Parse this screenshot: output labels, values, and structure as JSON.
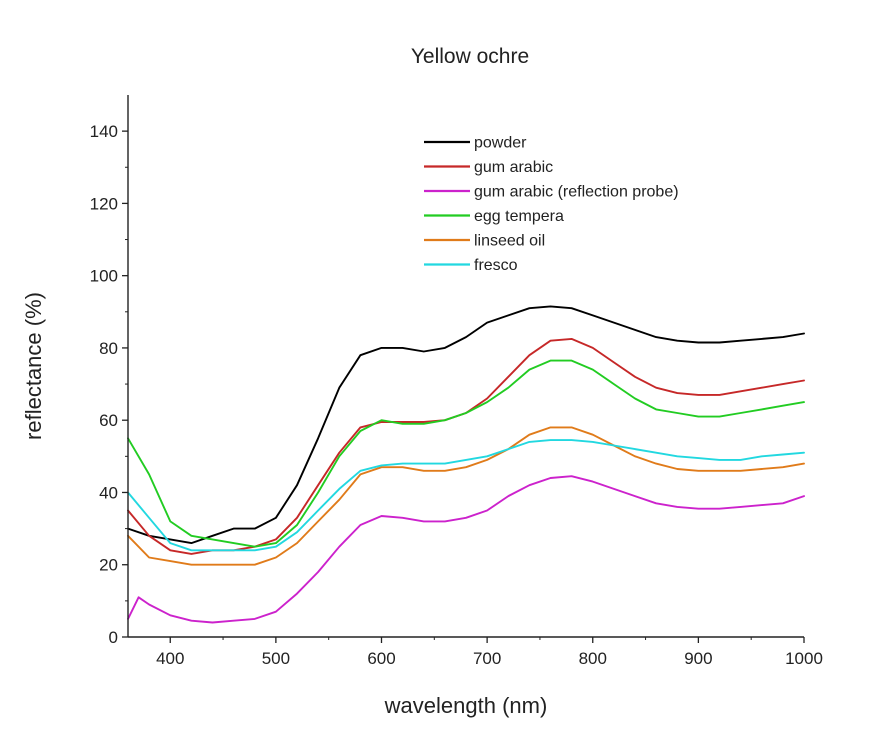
{
  "chart_data": {
    "type": "line",
    "title": "Yellow ochre",
    "xlabel": "wavelength (nm)",
    "ylabel": "reflectance (%)",
    "xlim": [
      360,
      1000
    ],
    "ylim": [
      0,
      150
    ],
    "xticks": [
      400,
      500,
      600,
      700,
      800,
      900,
      1000
    ],
    "yticks": [
      0,
      20,
      40,
      60,
      80,
      100,
      120,
      140
    ],
    "grid": false,
    "legend_position": "top-center",
    "series": [
      {
        "name": "powder",
        "color": "#000000",
        "x": [
          360,
          380,
          400,
          420,
          440,
          460,
          480,
          500,
          520,
          540,
          560,
          580,
          600,
          620,
          640,
          660,
          680,
          700,
          720,
          740,
          760,
          780,
          800,
          820,
          840,
          860,
          880,
          900,
          920,
          940,
          960,
          980,
          1000
        ],
        "y": [
          30,
          28,
          27,
          26,
          28,
          30,
          30,
          33,
          42,
          55,
          69,
          78,
          80,
          80,
          79,
          80,
          83,
          87,
          89,
          91,
          91.5,
          91,
          89,
          87,
          85,
          83,
          82,
          81.5,
          81.5,
          82,
          82.5,
          83,
          84
        ]
      },
      {
        "name": "gum arabic",
        "color": "#c62828",
        "x": [
          360,
          380,
          400,
          420,
          440,
          460,
          480,
          500,
          520,
          540,
          560,
          580,
          600,
          620,
          640,
          660,
          680,
          700,
          720,
          740,
          760,
          780,
          800,
          820,
          840,
          860,
          880,
          900,
          920,
          940,
          960,
          980,
          1000
        ],
        "y": [
          35,
          28,
          24,
          23,
          24,
          24,
          25,
          27,
          33,
          42,
          51,
          58,
          59.5,
          59.5,
          59.5,
          60,
          62,
          66,
          72,
          78,
          82,
          82.5,
          80,
          76,
          72,
          69,
          67.5,
          67,
          67,
          68,
          69,
          70,
          71
        ]
      },
      {
        "name": "gum arabic (reflection probe)",
        "color": "#cc22cc",
        "x": [
          360,
          370,
          380,
          400,
          420,
          440,
          460,
          480,
          500,
          520,
          540,
          560,
          580,
          600,
          620,
          640,
          660,
          680,
          700,
          720,
          740,
          760,
          780,
          800,
          820,
          840,
          860,
          880,
          900,
          920,
          940,
          960,
          980,
          1000
        ],
        "y": [
          5,
          11,
          9,
          6,
          4.5,
          4,
          4.5,
          5,
          7,
          12,
          18,
          25,
          31,
          33.5,
          33,
          32,
          32,
          33,
          35,
          39,
          42,
          44,
          44.5,
          43,
          41,
          39,
          37,
          36,
          35.5,
          35.5,
          36,
          36.5,
          37,
          39
        ]
      },
      {
        "name": "egg tempera",
        "color": "#22cc22",
        "x": [
          360,
          380,
          400,
          420,
          440,
          460,
          480,
          500,
          520,
          540,
          560,
          580,
          600,
          620,
          640,
          660,
          680,
          700,
          720,
          740,
          760,
          780,
          800,
          820,
          840,
          860,
          880,
          900,
          920,
          940,
          960,
          980,
          1000
        ],
        "y": [
          55,
          45,
          32,
          28,
          27,
          26,
          25,
          26,
          31,
          40,
          50,
          57,
          60,
          59,
          59,
          60,
          62,
          65,
          69,
          74,
          76.5,
          76.5,
          74,
          70,
          66,
          63,
          62,
          61,
          61,
          62,
          63,
          64,
          65
        ]
      },
      {
        "name": "linseed oil",
        "color": "#e07b1a",
        "x": [
          360,
          380,
          400,
          420,
          440,
          460,
          480,
          500,
          520,
          540,
          560,
          580,
          600,
          620,
          640,
          660,
          680,
          700,
          720,
          740,
          760,
          780,
          800,
          820,
          840,
          860,
          880,
          900,
          920,
          940,
          960,
          980,
          1000
        ],
        "y": [
          28,
          22,
          21,
          20,
          20,
          20,
          20,
          22,
          26,
          32,
          38,
          45,
          47,
          47,
          46,
          46,
          47,
          49,
          52,
          56,
          58,
          58,
          56,
          53,
          50,
          48,
          46.5,
          46,
          46,
          46,
          46.5,
          47,
          48
        ]
      },
      {
        "name": "fresco",
        "color": "#22d8e0",
        "x": [
          360,
          380,
          400,
          420,
          440,
          460,
          480,
          500,
          520,
          540,
          560,
          580,
          600,
          620,
          640,
          660,
          680,
          700,
          720,
          740,
          760,
          780,
          800,
          820,
          840,
          860,
          880,
          900,
          920,
          940,
          960,
          980,
          1000
        ],
        "y": [
          40,
          33,
          26,
          24,
          24,
          24,
          24,
          25,
          29,
          35,
          41,
          46,
          47.5,
          48,
          48,
          48,
          49,
          50,
          52,
          54,
          54.5,
          54.5,
          54,
          53,
          52,
          51,
          50,
          49.5,
          49,
          49,
          50,
          50.5,
          51
        ]
      }
    ]
  }
}
